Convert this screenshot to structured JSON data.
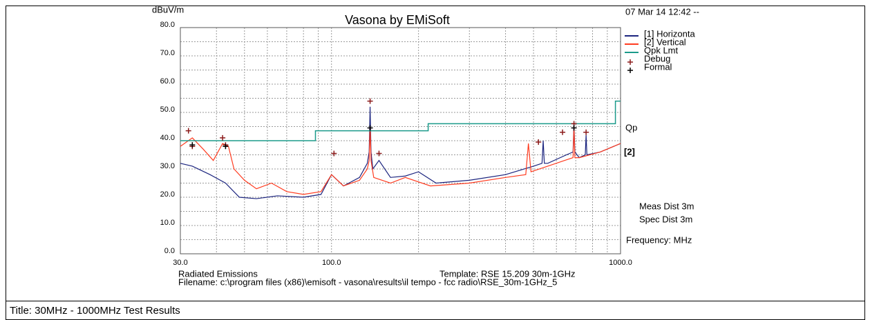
{
  "chart_data": {
    "type": "line",
    "title": "Vasona by EMiSoft",
    "ylabel": "dBuV/m",
    "timestamp": "07 Mar 14 12:42 --",
    "xlog": true,
    "xlim": [
      30,
      1000
    ],
    "ylim": [
      0,
      80
    ],
    "xticks": [
      {
        "value": 30,
        "label": "30.0"
      },
      {
        "value": 100,
        "label": "100.0"
      },
      {
        "value": 1000,
        "label": "1000.0"
      }
    ],
    "yticks": [
      {
        "value": 0,
        "label": "0.0"
      },
      {
        "value": 10,
        "label": "10.0"
      },
      {
        "value": 20,
        "label": "20.0"
      },
      {
        "value": 30,
        "label": "30.0"
      },
      {
        "value": 40,
        "label": "40.0"
      },
      {
        "value": 50,
        "label": "50.0"
      },
      {
        "value": 60,
        "label": "60.0"
      },
      {
        "value": 70,
        "label": "70.0"
      },
      {
        "value": 80,
        "label": "80.0"
      }
    ],
    "xminor": [
      40,
      50,
      60,
      70,
      80,
      90,
      200,
      300,
      400,
      500,
      600,
      700,
      800,
      900
    ],
    "yminor": [
      5,
      15,
      25,
      35,
      45,
      55,
      65,
      75
    ],
    "grid": true,
    "series": [
      {
        "name": "[1] Horizonta",
        "color": "#1a237e",
        "x": [
          30,
          33,
          38,
          43,
          48,
          55,
          65,
          80,
          92,
          100,
          110,
          125,
          133,
          135,
          136,
          137,
          139,
          146,
          160,
          180,
          200,
          230,
          300,
          400,
          500,
          535,
          540,
          545,
          560,
          650,
          685,
          690,
          695,
          720,
          755,
          760,
          765,
          850,
          1000
        ],
        "values": [
          32,
          31,
          28,
          25,
          20,
          19.5,
          20.5,
          20,
          21,
          28,
          24,
          27,
          32,
          36,
          52,
          36,
          30,
          33,
          27,
          27.5,
          29,
          25,
          26,
          28,
          31,
          32,
          40,
          32,
          32,
          35,
          36,
          46,
          36,
          34,
          35,
          42,
          35,
          36,
          39
        ]
      },
      {
        "name": "[2] Vertical",
        "color": "#ff3b1f",
        "x": [
          30,
          33,
          36,
          39,
          42,
          44,
          46,
          50,
          55,
          62,
          70,
          80,
          92,
          100,
          110,
          125,
          133,
          135,
          136,
          137,
          140,
          160,
          180,
          220,
          300,
          400,
          470,
          480,
          490,
          560,
          640,
          685,
          690,
          695,
          720,
          850,
          1000
        ],
        "values": [
          38,
          41,
          37,
          33,
          39,
          38,
          30,
          26,
          23,
          25,
          22,
          21,
          22,
          28,
          24,
          26,
          30,
          33,
          45,
          33,
          27,
          25,
          27,
          24,
          25,
          27,
          28,
          39,
          29,
          31,
          33,
          34,
          45,
          34,
          34,
          36,
          39
        ]
      },
      {
        "name": "Qpk Lmt",
        "color": "#1a9a8a",
        "x": [
          30,
          88,
          88,
          216,
          216,
          960,
          960,
          1000
        ],
        "values": [
          40,
          40,
          43.5,
          43.5,
          46,
          46,
          54,
          54
        ]
      },
      {
        "name": "Debug",
        "color": "#8b1a1a",
        "marker": "+",
        "x": [
          32,
          33,
          42,
          43,
          102,
          136,
          146,
          520,
          630,
          690,
          760
        ],
        "values": [
          43.5,
          38,
          41,
          38.5,
          35.5,
          54,
          35.5,
          39.5,
          43,
          46,
          43
        ]
      },
      {
        "name": "Formal",
        "color": "#000000",
        "marker": "+",
        "x": [
          33,
          43,
          136,
          690
        ],
        "values": [
          38.5,
          38,
          44.5,
          44.5
        ]
      }
    ],
    "limit_label": "Qp",
    "end_label": "[2]",
    "notes": [
      "Meas Dist 3m",
      "Spec Dist 3m",
      "Frequency: MHz"
    ],
    "footer": [
      "Radiated Emissions",
      "Template: RSE 15.209  30m-1GHz",
      "Filename: c:\\program files (x86)\\emisoft - vasona\\results\\il tempo - fcc radio\\RSE_30m-1GHz_5"
    ],
    "caption": "Title: 30MHz - 1000MHz Test Results"
  }
}
